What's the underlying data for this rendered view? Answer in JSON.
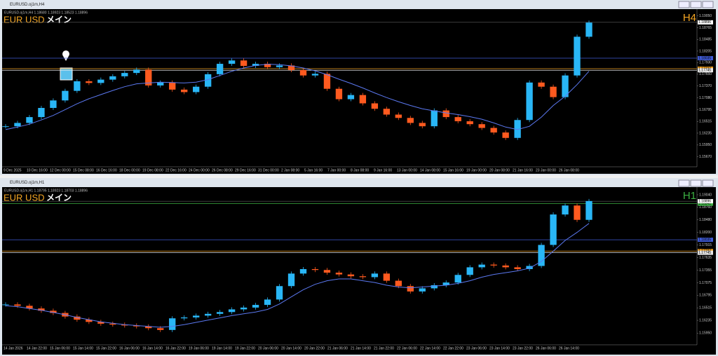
{
  "windows": [
    {
      "title": "EURUSD.oj1m,H4",
      "info": "EURUSD.oj1m,H4  1.18680 1.18923 1.18523 1.18896",
      "symbol": "EUR USD",
      "label": "メイン",
      "timeframe": "H4",
      "ylim": [
        1.1546,
        1.1918
      ],
      "yticks": [
        {
          "value": 1.1905,
          "label": "1.19050"
        },
        1.18765,
        1.18485,
        1.18205,
        {
          "value": 1.1793,
          "label": "1.17930"
        },
        {
          "value": 1.1765,
          "label": "1.17650"
        },
        {
          "value": 1.1737,
          "label": "1.17370"
        },
        {
          "value": 1.1708,
          "label": "1.17080"
        },
        1.16795,
        1.16515,
        1.16235,
        {
          "value": 1.1595,
          "label": "1.15950"
        },
        {
          "value": 1.1567,
          "label": "1.15670"
        }
      ],
      "bid": 1.18896,
      "levels": [
        {
          "value": 1.18035,
          "color": "#3f5bd6"
        },
        {
          "value": 1.17783,
          "color": "#f0a020"
        },
        {
          "value": 1.17745,
          "color": "#e8e8e8"
        }
      ],
      "time_labels": [
        "9 Dec 2025",
        "10 Dec 16:00",
        "12 Dec 00:00",
        "15 Dec 08:00",
        "16 Dec 16:00",
        "18 Dec 00:00",
        "19 Dec 08:00",
        "22 Dec 16:00",
        "24 Dec 00:00",
        "26 Dec 08:00",
        "29 Dec 16:00",
        "31 Dec 00:00",
        "2 Jan 08:00",
        "5 Jan 16:00",
        "7 Jan 00:00",
        "8 Jan 08:00",
        "9 Jan 16:00",
        "13 Jan 00:00",
        "14 Jan 08:00",
        "15 Jan 16:00",
        "19 Jan 00:00",
        "20 Jan 08:00",
        "21 Jan 16:00",
        "23 Jan 00:00",
        "26 Jan 08:00"
      ],
      "closes": [
        1.164,
        1.1648,
        1.1662,
        1.1684,
        1.1702,
        1.1725,
        1.1748,
        1.1744,
        1.1752,
        1.176,
        1.1768,
        1.1776,
        1.1738,
        1.1745,
        1.1728,
        1.1722,
        1.1735,
        1.1765,
        1.179,
        1.1798,
        1.1785,
        1.179,
        1.1782,
        1.1786,
        1.1775,
        1.1762,
        1.1766,
        1.173,
        1.1705,
        1.1715,
        1.1695,
        1.1682,
        1.1668,
        1.166,
        1.1648,
        1.164,
        1.1678,
        1.1662,
        1.1652,
        1.1645,
        1.1636,
        1.1625,
        1.1612,
        1.1655,
        1.1745,
        1.1735,
        1.171,
        1.1762,
        1.1855,
        1.1889
      ],
      "ma": [
        1.1632,
        1.1638,
        1.1645,
        1.1655,
        1.1666,
        1.168,
        1.1694,
        1.1706,
        1.1716,
        1.1726,
        1.1735,
        1.1742,
        1.1744,
        1.1746,
        1.1745,
        1.1744,
        1.1746,
        1.1752,
        1.1762,
        1.1772,
        1.178,
        1.1786,
        1.1789,
        1.1788,
        1.1785,
        1.178,
        1.1773,
        1.1764,
        1.1753,
        1.1743,
        1.1732,
        1.172,
        1.1709,
        1.1699,
        1.169,
        1.1682,
        1.1677,
        1.1672,
        1.1668,
        1.1663,
        1.1657,
        1.1648,
        1.1638,
        1.1632,
        1.164,
        1.1662,
        1.169,
        1.1712,
        1.174,
        1.1772
      ]
    },
    {
      "title": "EURUSD.oj1m,H1",
      "info": "EURUSD.oj1m,H1  1.18795 1.18923 1.18703 1.18896",
      "symbol": "EUR USD",
      "label": "メイン",
      "timeframe": "H1",
      "ylim": [
        1.1572,
        1.1918
      ],
      "yticks": [
        {
          "value": 1.1904,
          "label": "1.19040"
        },
        {
          "value": 1.1876,
          "label": "1.18760"
        },
        {
          "value": 1.1848,
          "label": "1.18480"
        },
        {
          "value": 1.182,
          "label": "1.18200"
        },
        1.17915,
        1.17635,
        1.17355,
        1.17075,
        1.16795,
        1.16515,
        1.16235,
        {
          "value": 1.1595,
          "label": "1.15950"
        }
      ],
      "bid": 1.18896,
      "levels": [
        {
          "value": 1.18841,
          "color": "#3cb043"
        },
        {
          "value": 1.18035,
          "color": "#3f5bd6"
        },
        {
          "value": 1.17783,
          "color": "#f0a020"
        },
        {
          "value": 1.17745,
          "color": "#e8e8e8"
        }
      ],
      "time_labels": [
        "14 Jan 2026",
        "14 Jan 22:00",
        "15 Jan 06:00",
        "15 Jan 14:00",
        "15 Jan 22:00",
        "16 Jan 06:00",
        "16 Jan 14:00",
        "16 Jan 22:00",
        "19 Jan 06:00",
        "19 Jan 14:00",
        "19 Jan 22:00",
        "20 Jan 06:00",
        "20 Jan 14:00",
        "20 Jan 22:00",
        "21 Jan 06:00",
        "21 Jan 14:00",
        "21 Jan 22:00",
        "22 Jan 06:00",
        "22 Jan 14:00",
        "22 Jan 22:00",
        "23 Jan 06:00",
        "23 Jan 14:00",
        "23 Jan 22:00",
        "26 Jan 06:00",
        "26 Jan 14:00"
      ],
      "closes": [
        1.1659,
        1.1656,
        1.165,
        1.1645,
        1.164,
        1.1632,
        1.1625,
        1.162,
        1.1616,
        1.1614,
        1.1612,
        1.161,
        1.1606,
        1.1602,
        1.1628,
        1.163,
        1.1634,
        1.1638,
        1.1642,
        1.1648,
        1.1652,
        1.1658,
        1.167,
        1.17,
        1.1728,
        1.1738,
        1.1736,
        1.173,
        1.1726,
        1.1722,
        1.172,
        1.1728,
        1.1712,
        1.17,
        1.1688,
        1.1695,
        1.1702,
        1.1708,
        1.1725,
        1.1742,
        1.1748,
        1.1746,
        1.1742,
        1.1738,
        1.1745,
        1.1792,
        1.186,
        1.188,
        1.1848,
        1.189
      ],
      "ma": [
        1.1656,
        1.1654,
        1.165,
        1.1646,
        1.1641,
        1.1636,
        1.163,
        1.1625,
        1.162,
        1.1617,
        1.1614,
        1.1612,
        1.161,
        1.1608,
        1.161,
        1.1614,
        1.1619,
        1.1624,
        1.1629,
        1.1634,
        1.1638,
        1.1642,
        1.1648,
        1.166,
        1.1676,
        1.1692,
        1.1704,
        1.1712,
        1.1716,
        1.1716,
        1.1712,
        1.1708,
        1.1702,
        1.1698,
        1.1696,
        1.1698,
        1.17,
        1.1702,
        1.1706,
        1.1712,
        1.172,
        1.1726,
        1.173,
        1.1734,
        1.174,
        1.1755,
        1.1778,
        1.1802,
        1.182,
        1.184
      ]
    }
  ]
}
